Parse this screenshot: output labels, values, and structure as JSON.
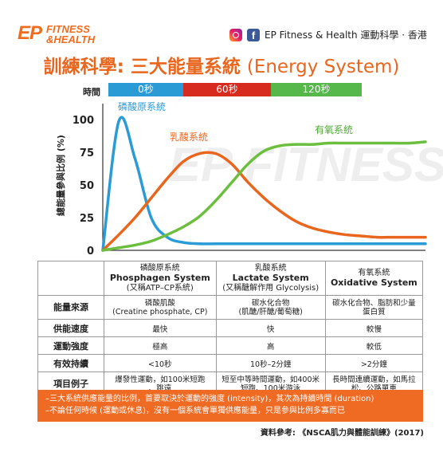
{
  "brand": {
    "logo_ep": "EP",
    "logo_fitness": "FITNESS",
    "logo_health": "&HEALTH",
    "social_text": "EP Fitness & Health 運動科學 · 香港",
    "fb_glyph": "f"
  },
  "title_zh": "訓練科學: 三大能量系統",
  "title_en": "(Energy System)",
  "time_bar": {
    "label": "時間",
    "segments": [
      {
        "label": "0秒",
        "color": "#2b9bd6"
      },
      {
        "label": "60秒",
        "color": "#d62b1e"
      },
      {
        "label": "120秒",
        "color": "#56b74a"
      }
    ]
  },
  "chart_data": {
    "type": "line",
    "ylabel": "總能量參與比例 (%)",
    "ylim": [
      0,
      100
    ],
    "yticks": [
      "0",
      "25",
      "50",
      "75",
      "100"
    ],
    "x": [
      0,
      5,
      10,
      15,
      20,
      25,
      30,
      35,
      40,
      45,
      50,
      55,
      60,
      65,
      70,
      75,
      80,
      85,
      90,
      95,
      100
    ],
    "series": [
      {
        "name": "磷酸原系統",
        "color": "#2b9bd6",
        "values": [
          0,
          99,
          70,
          25,
          10,
          6,
          5,
          5,
          5,
          5,
          5,
          5,
          5,
          5,
          5,
          5,
          5,
          5,
          5,
          5,
          5
        ]
      },
      {
        "name": "乳酸系統",
        "color": "#e8661e",
        "values": [
          0,
          12,
          25,
          40,
          55,
          68,
          74,
          74,
          66,
          52,
          40,
          30,
          22,
          17,
          14,
          12,
          11,
          10,
          10,
          10,
          10
        ]
      },
      {
        "name": "有氧系統",
        "color": "#6cbf3e",
        "values": [
          0,
          2,
          4,
          7,
          12,
          18,
          26,
          38,
          52,
          66,
          76,
          80,
          81,
          81,
          82,
          82,
          82,
          82,
          82,
          82,
          83
        ]
      }
    ]
  },
  "table": {
    "columns": [
      {
        "zh": "磷酸原系統",
        "en": "Phosphagen System",
        "sub": "(又稱ATP–CP系統)"
      },
      {
        "zh": "乳酸系統",
        "en": "Lactate System",
        "sub": "(又稱醣解作用 Glycolysis)"
      },
      {
        "zh": "有氧系統",
        "en": "Oxidative System",
        "sub": ""
      }
    ],
    "rows": [
      {
        "head": "能量來源",
        "cells": [
          "磷酸肌酸\n(Creatine phosphate, CP)",
          "碳水化合物\n(肌醣/肝醣/葡萄糖)",
          "碳水化合物、脂肪和少量\n蛋白質"
        ]
      },
      {
        "head": "供能速度",
        "cells": [
          "最快",
          "快",
          "較慢"
        ]
      },
      {
        "head": "運動強度",
        "cells": [
          "極高",
          "高",
          "較低"
        ]
      },
      {
        "head": "有效持續",
        "cells": [
          "<10秒",
          "10秒–2分鐘",
          ">2分鐘"
        ]
      },
      {
        "head": "項目例子",
        "cells": [
          "爆發性運動，如100米短跑\n、跳遠",
          "短至中等時間運動，如400米\n短跑、100米游泳",
          "長時間連續運動，如馬拉\n松、公路單車"
        ]
      }
    ]
  },
  "notes": [
    "–三大系統供應能量的比例，首要取決於運動的強度 (intensity)，其次為持續時間 (duration)",
    "–不論任何時候 (運動或休息)，沒有一個系統會單獨供應能量，只是參與比例多寡而已"
  ],
  "reference": "資料參考: 《NSCA肌力與體能訓練》(2017)",
  "watermark": "EP FITNESS &HEALTH"
}
